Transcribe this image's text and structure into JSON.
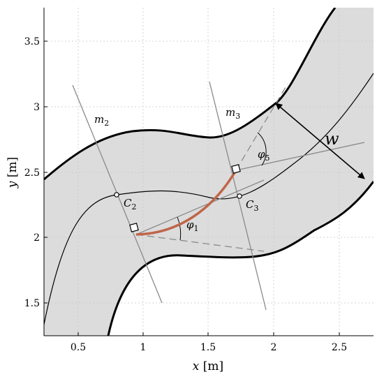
{
  "x_axis": {
    "variable": "x",
    "unit": "[m]",
    "ticks": [
      "0.5",
      "1",
      "1.5",
      "2",
      "2.5"
    ]
  },
  "y_axis": {
    "variable": "y",
    "unit": "[m]",
    "ticks": [
      "1.5",
      "2",
      "2.5",
      "3",
      "3.5"
    ]
  },
  "labels": {
    "m2": {
      "base": "m",
      "sub": "2"
    },
    "m3": {
      "base": "m",
      "sub": "3"
    },
    "c2": {
      "base": "C",
      "sub": "2"
    },
    "c3": {
      "base": "C",
      "sub": "3"
    },
    "phi1": {
      "base": "φ",
      "sub": "1"
    },
    "phi5": {
      "base": "φ",
      "sub": "5"
    },
    "width": "w"
  },
  "colors": {
    "road_fill": "#dcdcdc",
    "trajectory": "#c0654a",
    "line_gray": "#8a8a8a"
  }
}
